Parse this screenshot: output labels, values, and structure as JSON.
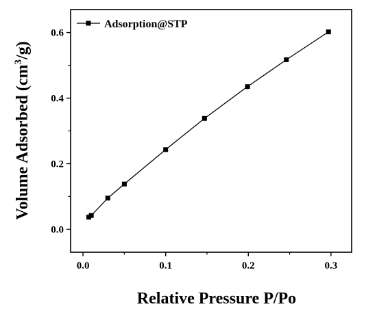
{
  "chart_data": {
    "type": "line",
    "xlabel": "Relative Pressure P/Po",
    "ylabel_main": "Volume Adsorbed (cm",
    "ylabel_sup": "3",
    "ylabel_tail": "/g)",
    "xlim": [
      -0.015,
      0.325
    ],
    "ylim": [
      -0.07,
      0.67
    ],
    "x_ticks": [
      0.0,
      0.1,
      0.2,
      0.3
    ],
    "x_tick_labels": [
      "0.0",
      "0.1",
      "0.2",
      "0.3"
    ],
    "y_ticks": [
      0.0,
      0.2,
      0.4,
      0.6
    ],
    "y_tick_labels": [
      "0.0",
      "0.2",
      "0.4",
      "0.6"
    ],
    "grid": false,
    "legend_position": "top-left",
    "series": [
      {
        "name": "Adsorption@STP",
        "color": "#000000",
        "marker": "square",
        "x": [
          0.007,
          0.01,
          0.03,
          0.05,
          0.1,
          0.147,
          0.199,
          0.246,
          0.297
        ],
        "y": [
          0.037,
          0.042,
          0.095,
          0.138,
          0.243,
          0.338,
          0.435,
          0.517,
          0.602
        ]
      }
    ]
  }
}
